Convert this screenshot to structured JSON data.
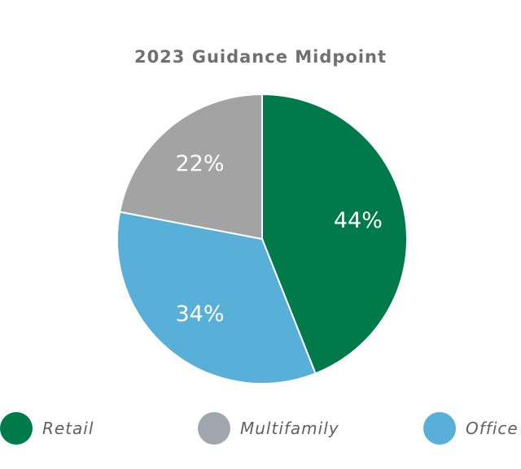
{
  "chart_data": {
    "type": "pie",
    "title": "2023 Guidance Midpoint",
    "slices": [
      {
        "label": "Retail",
        "value": 44,
        "display": "44%",
        "color": "#017a4b"
      },
      {
        "label": "Office",
        "value": 34,
        "display": "34%",
        "color": "#58afd7"
      },
      {
        "label": "Multifamily",
        "value": 22,
        "display": "22%",
        "color": "#a3a3a3"
      }
    ],
    "legend": {
      "position": "bottom",
      "items": [
        {
          "label": "Retail",
          "color": "#017a4b"
        },
        {
          "label": "Multifamily",
          "color": "#a0a6ad"
        },
        {
          "label": "Office",
          "color": "#58afd7"
        }
      ]
    }
  }
}
